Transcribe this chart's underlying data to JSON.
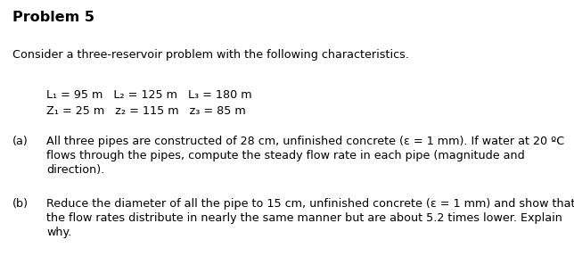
{
  "title": "Problem 5",
  "background_color": "#ffffff",
  "text_color": "#000000",
  "figsize": [
    6.44,
    3.06
  ],
  "dpi": 100,
  "intro": "Consider a three-reservoir problem with the following characteristics.",
  "params_line1": "L₁ = 95 m   L₂ = 125 m   L₃ = 180 m",
  "params_line2": "Z₁ = 25 m   z₂ = 115 m   z₃ = 85 m",
  "part_a_label": "(a)",
  "part_a_line1": "All three pipes are constructed of 28 cm, unfinished concrete (ε = 1 mm). If water at 20 ºC",
  "part_a_line2": "flows through the pipes, compute the steady flow rate in each pipe (magnitude and",
  "part_a_line3": "direction).",
  "part_b_label": "(b)",
  "part_b_line1": "Reduce the diameter of all the pipe to 15 cm, unfinished concrete (ε = 1 mm) and show that",
  "part_b_line2": "the flow rates distribute in nearly the same manner but are about 5.2 times lower. Explain",
  "part_b_line3": "why."
}
